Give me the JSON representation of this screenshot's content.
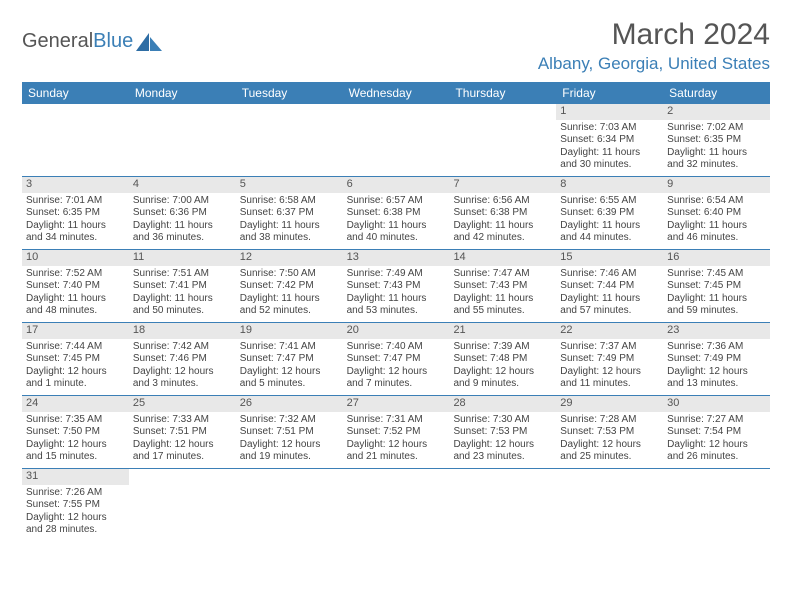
{
  "logo": {
    "part1": "General",
    "part2": "Blue"
  },
  "title": "March 2024",
  "location": "Albany, Georgia, United States",
  "colors": {
    "header_bg": "#3b7fb6",
    "header_text": "#ffffff",
    "daynum_bg": "#e8e8e8",
    "border": "#3b7fb6",
    "title_color": "#555555",
    "location_color": "#3b7fb6"
  },
  "day_names": [
    "Sunday",
    "Monday",
    "Tuesday",
    "Wednesday",
    "Thursday",
    "Friday",
    "Saturday"
  ],
  "weeks": [
    [
      null,
      null,
      null,
      null,
      null,
      {
        "n": "1",
        "sr": "Sunrise: 7:03 AM",
        "ss": "Sunset: 6:34 PM",
        "d1": "Daylight: 11 hours",
        "d2": "and 30 minutes."
      },
      {
        "n": "2",
        "sr": "Sunrise: 7:02 AM",
        "ss": "Sunset: 6:35 PM",
        "d1": "Daylight: 11 hours",
        "d2": "and 32 minutes."
      }
    ],
    [
      {
        "n": "3",
        "sr": "Sunrise: 7:01 AM",
        "ss": "Sunset: 6:35 PM",
        "d1": "Daylight: 11 hours",
        "d2": "and 34 minutes."
      },
      {
        "n": "4",
        "sr": "Sunrise: 7:00 AM",
        "ss": "Sunset: 6:36 PM",
        "d1": "Daylight: 11 hours",
        "d2": "and 36 minutes."
      },
      {
        "n": "5",
        "sr": "Sunrise: 6:58 AM",
        "ss": "Sunset: 6:37 PM",
        "d1": "Daylight: 11 hours",
        "d2": "and 38 minutes."
      },
      {
        "n": "6",
        "sr": "Sunrise: 6:57 AM",
        "ss": "Sunset: 6:38 PM",
        "d1": "Daylight: 11 hours",
        "d2": "and 40 minutes."
      },
      {
        "n": "7",
        "sr": "Sunrise: 6:56 AM",
        "ss": "Sunset: 6:38 PM",
        "d1": "Daylight: 11 hours",
        "d2": "and 42 minutes."
      },
      {
        "n": "8",
        "sr": "Sunrise: 6:55 AM",
        "ss": "Sunset: 6:39 PM",
        "d1": "Daylight: 11 hours",
        "d2": "and 44 minutes."
      },
      {
        "n": "9",
        "sr": "Sunrise: 6:54 AM",
        "ss": "Sunset: 6:40 PM",
        "d1": "Daylight: 11 hours",
        "d2": "and 46 minutes."
      }
    ],
    [
      {
        "n": "10",
        "sr": "Sunrise: 7:52 AM",
        "ss": "Sunset: 7:40 PM",
        "d1": "Daylight: 11 hours",
        "d2": "and 48 minutes."
      },
      {
        "n": "11",
        "sr": "Sunrise: 7:51 AM",
        "ss": "Sunset: 7:41 PM",
        "d1": "Daylight: 11 hours",
        "d2": "and 50 minutes."
      },
      {
        "n": "12",
        "sr": "Sunrise: 7:50 AM",
        "ss": "Sunset: 7:42 PM",
        "d1": "Daylight: 11 hours",
        "d2": "and 52 minutes."
      },
      {
        "n": "13",
        "sr": "Sunrise: 7:49 AM",
        "ss": "Sunset: 7:43 PM",
        "d1": "Daylight: 11 hours",
        "d2": "and 53 minutes."
      },
      {
        "n": "14",
        "sr": "Sunrise: 7:47 AM",
        "ss": "Sunset: 7:43 PM",
        "d1": "Daylight: 11 hours",
        "d2": "and 55 minutes."
      },
      {
        "n": "15",
        "sr": "Sunrise: 7:46 AM",
        "ss": "Sunset: 7:44 PM",
        "d1": "Daylight: 11 hours",
        "d2": "and 57 minutes."
      },
      {
        "n": "16",
        "sr": "Sunrise: 7:45 AM",
        "ss": "Sunset: 7:45 PM",
        "d1": "Daylight: 11 hours",
        "d2": "and 59 minutes."
      }
    ],
    [
      {
        "n": "17",
        "sr": "Sunrise: 7:44 AM",
        "ss": "Sunset: 7:45 PM",
        "d1": "Daylight: 12 hours",
        "d2": "and 1 minute."
      },
      {
        "n": "18",
        "sr": "Sunrise: 7:42 AM",
        "ss": "Sunset: 7:46 PM",
        "d1": "Daylight: 12 hours",
        "d2": "and 3 minutes."
      },
      {
        "n": "19",
        "sr": "Sunrise: 7:41 AM",
        "ss": "Sunset: 7:47 PM",
        "d1": "Daylight: 12 hours",
        "d2": "and 5 minutes."
      },
      {
        "n": "20",
        "sr": "Sunrise: 7:40 AM",
        "ss": "Sunset: 7:47 PM",
        "d1": "Daylight: 12 hours",
        "d2": "and 7 minutes."
      },
      {
        "n": "21",
        "sr": "Sunrise: 7:39 AM",
        "ss": "Sunset: 7:48 PM",
        "d1": "Daylight: 12 hours",
        "d2": "and 9 minutes."
      },
      {
        "n": "22",
        "sr": "Sunrise: 7:37 AM",
        "ss": "Sunset: 7:49 PM",
        "d1": "Daylight: 12 hours",
        "d2": "and 11 minutes."
      },
      {
        "n": "23",
        "sr": "Sunrise: 7:36 AM",
        "ss": "Sunset: 7:49 PM",
        "d1": "Daylight: 12 hours",
        "d2": "and 13 minutes."
      }
    ],
    [
      {
        "n": "24",
        "sr": "Sunrise: 7:35 AM",
        "ss": "Sunset: 7:50 PM",
        "d1": "Daylight: 12 hours",
        "d2": "and 15 minutes."
      },
      {
        "n": "25",
        "sr": "Sunrise: 7:33 AM",
        "ss": "Sunset: 7:51 PM",
        "d1": "Daylight: 12 hours",
        "d2": "and 17 minutes."
      },
      {
        "n": "26",
        "sr": "Sunrise: 7:32 AM",
        "ss": "Sunset: 7:51 PM",
        "d1": "Daylight: 12 hours",
        "d2": "and 19 minutes."
      },
      {
        "n": "27",
        "sr": "Sunrise: 7:31 AM",
        "ss": "Sunset: 7:52 PM",
        "d1": "Daylight: 12 hours",
        "d2": "and 21 minutes."
      },
      {
        "n": "28",
        "sr": "Sunrise: 7:30 AM",
        "ss": "Sunset: 7:53 PM",
        "d1": "Daylight: 12 hours",
        "d2": "and 23 minutes."
      },
      {
        "n": "29",
        "sr": "Sunrise: 7:28 AM",
        "ss": "Sunset: 7:53 PM",
        "d1": "Daylight: 12 hours",
        "d2": "and 25 minutes."
      },
      {
        "n": "30",
        "sr": "Sunrise: 7:27 AM",
        "ss": "Sunset: 7:54 PM",
        "d1": "Daylight: 12 hours",
        "d2": "and 26 minutes."
      }
    ],
    [
      {
        "n": "31",
        "sr": "Sunrise: 7:26 AM",
        "ss": "Sunset: 7:55 PM",
        "d1": "Daylight: 12 hours",
        "d2": "and 28 minutes."
      },
      null,
      null,
      null,
      null,
      null,
      null
    ]
  ]
}
